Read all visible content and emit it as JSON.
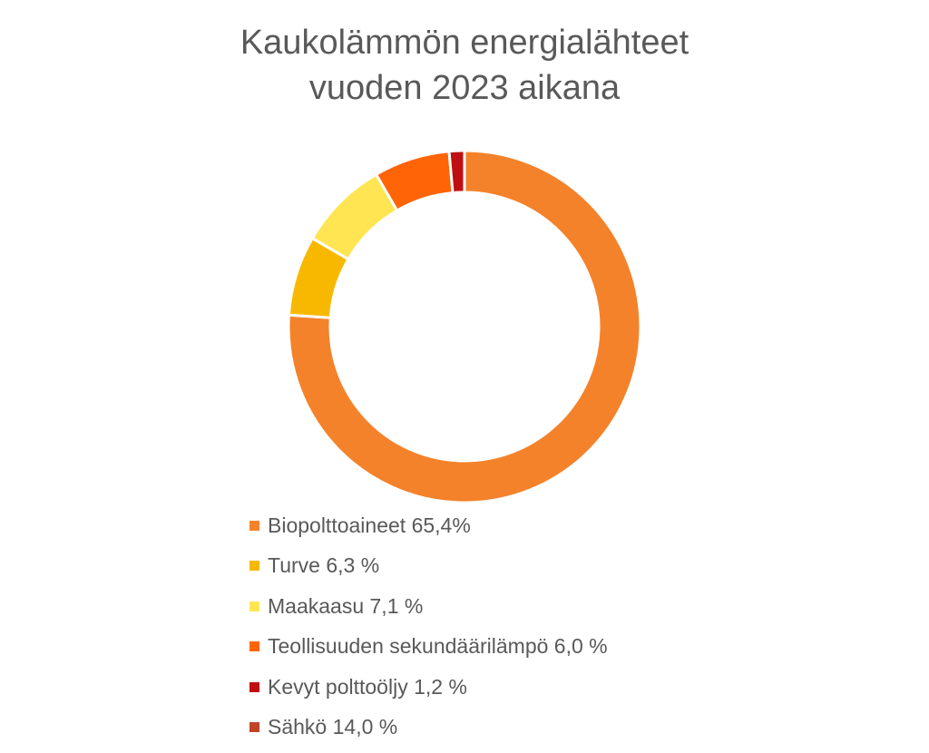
{
  "title": {
    "line1": "Kaukolämmön energialähteet",
    "line2": "vuoden 2023 aikana"
  },
  "legend": {
    "items": [
      {
        "label": "Biopolttoaineet 65,4%",
        "color": "#F4822A"
      },
      {
        "label": "Turve 6,3 %",
        "color": "#F9B800"
      },
      {
        "label": "Maakaasu 7,1 %",
        "color": "#FFE552"
      },
      {
        "label": "Teollisuuden sekundäärilämpö 6,0 %",
        "color": "#FF6407"
      },
      {
        "label": "Kevyt polttoöljy 1,2 %",
        "color": "#C00F12"
      },
      {
        "label": "Sähkö 14,0 %",
        "color": "#C0432A"
      }
    ]
  },
  "chart_data": {
    "type": "pie",
    "subtype": "donut",
    "title": "Kaukolämmön energialähteet vuoden 2023 aikana",
    "categories": [
      "Biopolttoaineet",
      "Turve",
      "Maakaasu",
      "Teollisuuden sekundäärilämpö",
      "Kevyt polttoöljy",
      "Sähkö"
    ],
    "values": [
      65.4,
      6.3,
      7.1,
      6.0,
      1.2,
      14.0
    ],
    "unit": "%",
    "colors": [
      "#F4822A",
      "#F9B800",
      "#FFE552",
      "#FF6407",
      "#C00F12",
      "#C0432A"
    ],
    "drawn_in_ring": [
      true,
      true,
      true,
      true,
      true,
      false
    ],
    "legend_labels": [
      "Biopolttoaineet 65,4%",
      "Turve 6,3 %",
      "Maakaasu 7,1 %",
      "Teollisuuden sekundäärilämpö 6,0 %",
      "Kevyt polttoöljy 1,2 %",
      "Sähkö 14,0 %"
    ],
    "legend_position": "bottom",
    "start_angle": 0,
    "direction": "clockwise"
  }
}
